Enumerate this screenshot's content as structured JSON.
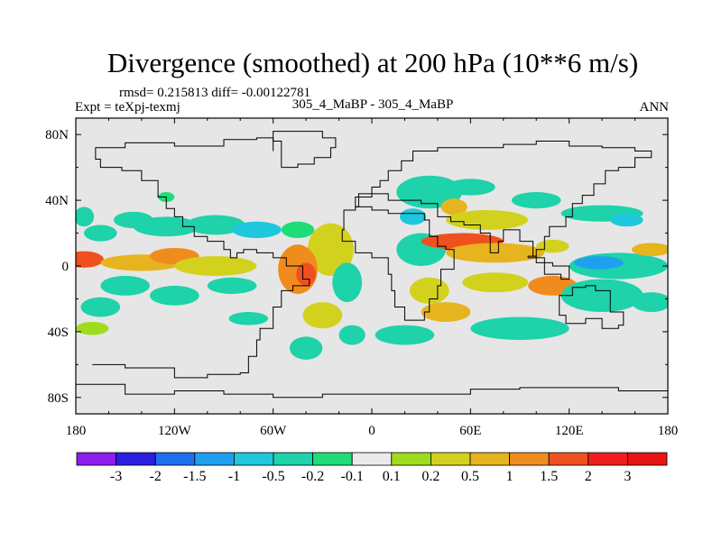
{
  "chart_data": {
    "type": "heatmap",
    "title": "Divergence (smoothed) at 200 hPa (10**6 m/s)",
    "stats_text": "rmsd= 0.215813 diff= -0.00122781",
    "left_label": "Expt = teXpj-texmj",
    "center_label": "305_4_MaBP - 305_4_MaBP",
    "right_label": "ANN",
    "x_ticks": [
      "180",
      "120W",
      "60W",
      "0",
      "60E",
      "120E",
      "180"
    ],
    "x_tick_values": [
      -180,
      -120,
      -60,
      0,
      60,
      120,
      180
    ],
    "y_ticks": [
      "80N",
      "40N",
      "0",
      "40S",
      "80S"
    ],
    "y_tick_values": [
      80,
      40,
      0,
      -40,
      -80
    ],
    "xlim": [
      -180,
      180
    ],
    "ylim": [
      -90,
      90
    ],
    "colorbar": {
      "labels": [
        "-3",
        "-2",
        "-1.5",
        "-1",
        "-0.5",
        "-0.2",
        "-0.1",
        "0.1",
        "0.2",
        "0.5",
        "1",
        "1.5",
        "2",
        "3"
      ],
      "colors": [
        "#8c1cf0",
        "#2a1ee0",
        "#1e6ef0",
        "#1ea0f0",
        "#1ec8dc",
        "#1ed2aa",
        "#1edc78",
        "#ebebeb",
        "#a0dc1e",
        "#d2d21e",
        "#e6b41e",
        "#f08c1e",
        "#f0501e",
        "#f01e1e",
        "#e61414"
      ]
    },
    "blobs": [
      {
        "lon": -175,
        "lat": 4,
        "rlon": 12,
        "rlat": 5,
        "level": 12
      },
      {
        "lon": -140,
        "lat": 2,
        "rlon": 25,
        "rlat": 5,
        "level": 10
      },
      {
        "lon": -120,
        "lat": 6,
        "rlon": 15,
        "rlat": 5,
        "level": 11
      },
      {
        "lon": -95,
        "lat": 0,
        "rlon": 25,
        "rlat": 6,
        "level": 9
      },
      {
        "lon": -165,
        "lat": 20,
        "rlon": 10,
        "rlat": 5,
        "level": 5
      },
      {
        "lon": -125,
        "lat": 24,
        "rlon": 20,
        "rlat": 6,
        "level": 5
      },
      {
        "lon": -145,
        "lat": 28,
        "rlon": 12,
        "rlat": 5,
        "level": 5
      },
      {
        "lon": -95,
        "lat": 25,
        "rlon": 18,
        "rlat": 6,
        "level": 5
      },
      {
        "lon": -70,
        "lat": 22,
        "rlon": 15,
        "rlat": 5,
        "level": 4
      },
      {
        "lon": -45,
        "lat": 22,
        "rlon": 10,
        "rlat": 5,
        "level": 6
      },
      {
        "lon": -125,
        "lat": 42,
        "rlon": 5,
        "rlat": 3,
        "level": 6
      },
      {
        "lon": -175,
        "lat": 30,
        "rlon": 6,
        "rlat": 6,
        "level": 5
      },
      {
        "lon": -150,
        "lat": -12,
        "rlon": 15,
        "rlat": 6,
        "level": 5
      },
      {
        "lon": -120,
        "lat": -18,
        "rlon": 15,
        "rlat": 6,
        "level": 5
      },
      {
        "lon": -85,
        "lat": -12,
        "rlon": 15,
        "rlat": 5,
        "level": 5
      },
      {
        "lon": -165,
        "lat": -25,
        "rlon": 12,
        "rlat": 6,
        "level": 5
      },
      {
        "lon": -75,
        "lat": -32,
        "rlon": 12,
        "rlat": 4,
        "level": 5
      },
      {
        "lon": -170,
        "lat": -38,
        "rlon": 10,
        "rlat": 4,
        "level": 8
      },
      {
        "lon": -25,
        "lat": 10,
        "rlon": 14,
        "rlat": 16,
        "level": 9
      },
      {
        "lon": -45,
        "lat": -2,
        "rlon": 12,
        "rlat": 15,
        "level": 11
      },
      {
        "lon": -40,
        "lat": -5,
        "rlon": 6,
        "rlat": 7,
        "level": 12
      },
      {
        "lon": -15,
        "lat": -10,
        "rlon": 9,
        "rlat": 12,
        "level": 5
      },
      {
        "lon": -30,
        "lat": -30,
        "rlon": 12,
        "rlat": 8,
        "level": 9
      },
      {
        "lon": -40,
        "lat": -50,
        "rlon": 10,
        "rlat": 7,
        "level": 5
      },
      {
        "lon": -12,
        "lat": -42,
        "rlon": 8,
        "rlat": 6,
        "level": 5
      },
      {
        "lon": 35,
        "lat": 45,
        "rlon": 20,
        "rlat": 10,
        "level": 5
      },
      {
        "lon": 50,
        "lat": 36,
        "rlon": 8,
        "rlat": 5,
        "level": 10
      },
      {
        "lon": 25,
        "lat": 30,
        "rlon": 8,
        "rlat": 5,
        "level": 4
      },
      {
        "lon": 30,
        "lat": 10,
        "rlon": 15,
        "rlat": 10,
        "level": 5
      },
      {
        "lon": 55,
        "lat": 15,
        "rlon": 25,
        "rlat": 5,
        "level": 12
      },
      {
        "lon": 75,
        "lat": 8,
        "rlon": 30,
        "rlat": 6,
        "level": 10
      },
      {
        "lon": 70,
        "lat": 28,
        "rlon": 25,
        "rlat": 6,
        "level": 9
      },
      {
        "lon": 60,
        "lat": 48,
        "rlon": 15,
        "rlat": 5,
        "level": 5
      },
      {
        "lon": 100,
        "lat": 40,
        "rlon": 15,
        "rlat": 5,
        "level": 5
      },
      {
        "lon": 140,
        "lat": 32,
        "rlon": 25,
        "rlat": 5,
        "level": 5
      },
      {
        "lon": 155,
        "lat": 28,
        "rlon": 10,
        "rlat": 4,
        "level": 4
      },
      {
        "lon": 150,
        "lat": 0,
        "rlon": 30,
        "rlat": 8,
        "level": 5
      },
      {
        "lon": 138,
        "lat": 2,
        "rlon": 15,
        "rlat": 4,
        "level": 3
      },
      {
        "lon": 170,
        "lat": 10,
        "rlon": 12,
        "rlat": 4,
        "level": 10
      },
      {
        "lon": 110,
        "lat": 12,
        "rlon": 10,
        "rlat": 4,
        "level": 9
      },
      {
        "lon": 35,
        "lat": -15,
        "rlon": 12,
        "rlat": 8,
        "level": 9
      },
      {
        "lon": 75,
        "lat": -10,
        "rlon": 20,
        "rlat": 6,
        "level": 9
      },
      {
        "lon": 110,
        "lat": -12,
        "rlon": 15,
        "rlat": 6,
        "level": 11
      },
      {
        "lon": 140,
        "lat": -18,
        "rlon": 25,
        "rlat": 10,
        "level": 5
      },
      {
        "lon": 170,
        "lat": -22,
        "rlon": 12,
        "rlat": 6,
        "level": 5
      },
      {
        "lon": 20,
        "lat": -42,
        "rlon": 18,
        "rlat": 6,
        "level": 5
      },
      {
        "lon": 90,
        "lat": -38,
        "rlon": 30,
        "rlat": 7,
        "level": 5
      },
      {
        "lon": 45,
        "lat": -28,
        "rlon": 15,
        "rlat": 6,
        "level": 10
      }
    ],
    "coastlines": [
      [
        [
          -170,
          -60
        ],
        [
          -150,
          -62
        ],
        [
          -120,
          -68
        ],
        [
          -100,
          -66
        ],
        [
          -80,
          -65
        ],
        [
          -75,
          -55
        ],
        [
          -70,
          -45
        ],
        [
          -68,
          -38
        ],
        [
          -60,
          -25
        ],
        [
          -55,
          -15
        ],
        [
          -48,
          -12
        ],
        [
          -38,
          -8
        ],
        [
          -42,
          0
        ],
        [
          -52,
          5
        ],
        [
          -60,
          8
        ],
        [
          -70,
          10
        ],
        [
          -78,
          8
        ],
        [
          -82,
          5
        ],
        [
          -86,
          10
        ],
        [
          -90,
          15
        ],
        [
          -100,
          18
        ],
        [
          -108,
          24
        ],
        [
          -115,
          30
        ],
        [
          -120,
          35
        ],
        [
          -125,
          42
        ],
        [
          -130,
          52
        ],
        [
          -140,
          58
        ],
        [
          -152,
          60
        ],
        [
          -165,
          65
        ],
        [
          -168,
          72
        ],
        [
          -150,
          75
        ],
        [
          -120,
          73
        ],
        [
          -90,
          77
        ],
        [
          -70,
          78
        ],
        [
          -60,
          70
        ]
      ],
      [
        [
          -180,
          -72
        ],
        [
          -150,
          -78
        ],
        [
          -120,
          -76
        ],
        [
          -90,
          -78
        ],
        [
          -60,
          -80
        ],
        [
          -30,
          -78
        ],
        [
          0,
          -78
        ],
        [
          30,
          -78
        ],
        [
          60,
          -75
        ],
        [
          90,
          -74
        ],
        [
          120,
          -74
        ],
        [
          150,
          -76
        ],
        [
          180,
          -78
        ]
      ],
      [
        [
          -18,
          15
        ],
        [
          -10,
          8
        ],
        [
          0,
          5
        ],
        [
          10,
          4
        ],
        [
          10,
          -5
        ],
        [
          12,
          -15
        ],
        [
          14,
          -25
        ],
        [
          20,
          -33
        ],
        [
          27,
          -33
        ],
        [
          32,
          -28
        ],
        [
          35,
          -20
        ],
        [
          40,
          -12
        ],
        [
          42,
          -2
        ],
        [
          50,
          10
        ],
        [
          45,
          12
        ],
        [
          40,
          18
        ],
        [
          35,
          28
        ],
        [
          32,
          32
        ],
        [
          20,
          32
        ],
        [
          10,
          34
        ],
        [
          0,
          36
        ],
        [
          -10,
          34
        ],
        [
          -17,
          22
        ],
        [
          -18,
          15
        ]
      ],
      [
        [
          -10,
          36
        ],
        [
          -8,
          44
        ],
        [
          0,
          48
        ],
        [
          5,
          52
        ],
        [
          10,
          58
        ],
        [
          18,
          64
        ],
        [
          25,
          70
        ],
        [
          40,
          72
        ],
        [
          60,
          72
        ],
        [
          80,
          74
        ],
        [
          100,
          76
        ],
        [
          120,
          73
        ],
        [
          140,
          72
        ],
        [
          160,
          70
        ],
        [
          170,
          66
        ],
        [
          160,
          60
        ],
        [
          150,
          58
        ],
        [
          142,
          50
        ],
        [
          135,
          43
        ],
        [
          128,
          38
        ],
        [
          122,
          30
        ],
        [
          118,
          24
        ],
        [
          108,
          18
        ],
        [
          105,
          10
        ],
        [
          100,
          6
        ],
        [
          98,
          15
        ],
        [
          90,
          22
        ],
        [
          80,
          15
        ],
        [
          77,
          8
        ],
        [
          72,
          20
        ],
        [
          66,
          25
        ],
        [
          56,
          27
        ],
        [
          48,
          30
        ],
        [
          40,
          38
        ],
        [
          30,
          40
        ],
        [
          20,
          40
        ],
        [
          10,
          44
        ],
        [
          0,
          42
        ],
        [
          -10,
          36
        ]
      ],
      [
        [
          114,
          -22
        ],
        [
          114,
          -30
        ],
        [
          118,
          -35
        ],
        [
          130,
          -32
        ],
        [
          140,
          -38
        ],
        [
          150,
          -36
        ],
        [
          153,
          -28
        ],
        [
          145,
          -15
        ],
        [
          136,
          -12
        ],
        [
          130,
          -13
        ],
        [
          122,
          -18
        ],
        [
          114,
          -22
        ]
      ],
      [
        [
          -55,
          60
        ],
        [
          -45,
          62
        ],
        [
          -35,
          66
        ],
        [
          -25,
          72
        ],
        [
          -22,
          78
        ],
        [
          -30,
          82
        ],
        [
          -50,
          82
        ],
        [
          -60,
          76
        ],
        [
          -55,
          60
        ]
      ],
      [
        [
          95,
          5
        ],
        [
          105,
          -5
        ],
        [
          115,
          -8
        ],
        [
          120,
          0
        ],
        [
          110,
          2
        ],
        [
          100,
          6
        ],
        [
          95,
          5
        ]
      ]
    ]
  }
}
